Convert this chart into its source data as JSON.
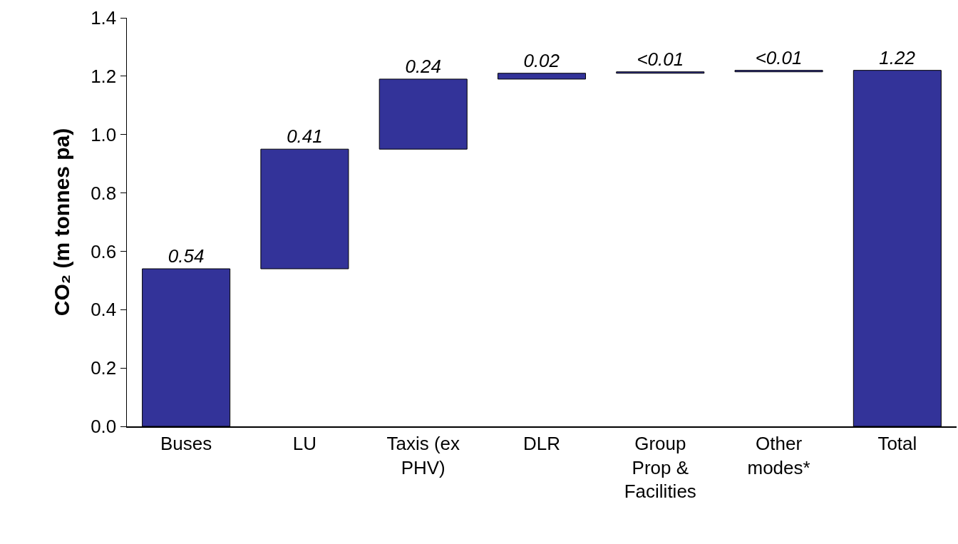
{
  "chart_data": {
    "type": "bar",
    "ylabel": "CO₂ (m tonnes pa)",
    "categories": [
      "Buses",
      "LU",
      "Taxis (ex PHV)",
      "DLR",
      "Group Prop & Facilities",
      "Other modes*",
      "Total"
    ],
    "values": [
      0.54,
      0.41,
      0.24,
      0.02,
      0.005,
      0.005,
      1.22
    ],
    "base": [
      0,
      0.54,
      0.95,
      1.19,
      1.21,
      1.215,
      0
    ],
    "value_labels": [
      "0.54",
      "0.41",
      "0.24",
      "0.02",
      "<0.01",
      "<0.01",
      "1.22"
    ],
    "color": "#333399",
    "ylim": [
      0,
      1.4
    ],
    "yticks": [
      {
        "value": 0,
        "label": "0.0"
      },
      0.2,
      0.4,
      0.6,
      0.8,
      {
        "value": 1,
        "label": "1.0"
      },
      1.2,
      1.4
    ],
    "grid": false
  }
}
